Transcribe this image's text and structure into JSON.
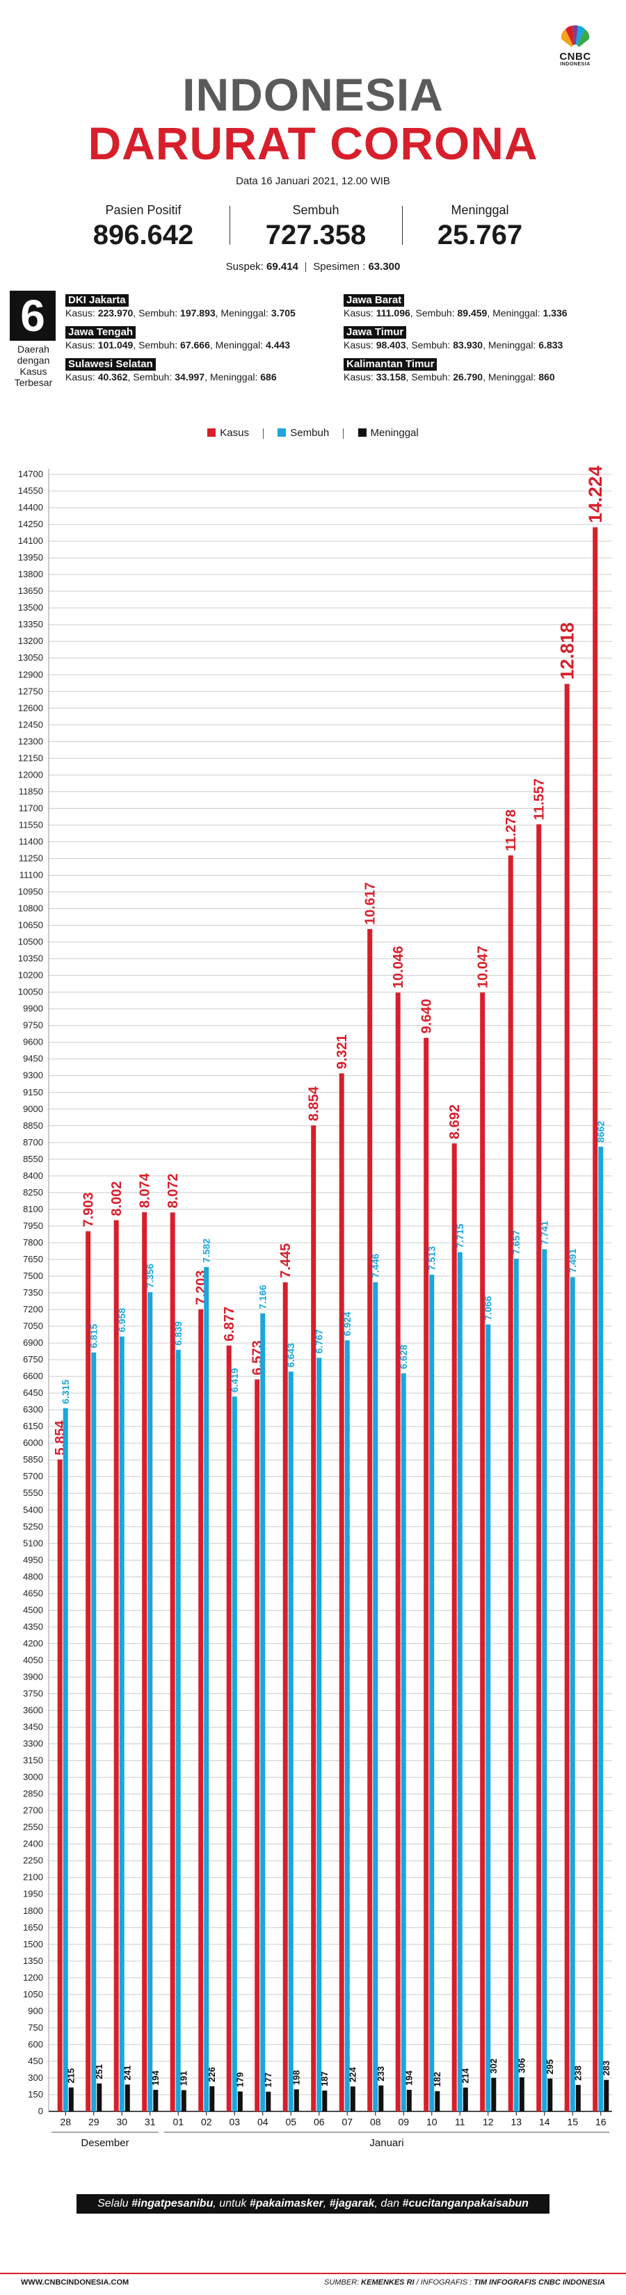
{
  "logo": {
    "brand": "CNBC",
    "sub": "INDONESIA"
  },
  "header": {
    "title_line1": "INDONESIA",
    "title_line2": "DARURAT CORONA",
    "date": "Data 16 Januari 2021, 12.00 WIB"
  },
  "summary": {
    "positif_label": "Pasien Positif",
    "positif_value": "896.642",
    "sembuh_label": "Sembuh",
    "sembuh_value": "727.358",
    "meninggal_label": "Meninggal",
    "meninggal_value": "25.767",
    "suspek_label": "Suspek:",
    "suspek_value": "69.414",
    "spesimen_label": "Spesimen :",
    "spesimen_value": "63.300"
  },
  "top_daerah": {
    "count": "6",
    "caption_lines": [
      "Daerah",
      "dengan",
      "Kasus",
      "Terbesar"
    ],
    "kasus_label": "Kasus:",
    "sembuh_label": "Sembuh:",
    "meninggal_label": "Meninggal:",
    "provinces": [
      {
        "name": "DKI Jakarta",
        "kasus": "223.970",
        "sembuh": "197.893",
        "meninggal": "3.705"
      },
      {
        "name": "Jawa Tengah",
        "kasus": "101.049",
        "sembuh": "67.666",
        "meninggal": "4.443"
      },
      {
        "name": "Sulawesi Selatan",
        "kasus": "40.362",
        "sembuh": "34.997",
        "meninggal": "686"
      },
      {
        "name": "Jawa Barat",
        "kasus": "111.096",
        "sembuh": "89.459",
        "meninggal": "1.336"
      },
      {
        "name": "Jawa Timur",
        "kasus": "98.403",
        "sembuh": "83.930",
        "meninggal": "6.833"
      },
      {
        "name": "Kalimantan Timur",
        "kasus": "33.158",
        "sembuh": "26.790",
        "meninggal": "860"
      }
    ]
  },
  "colors": {
    "kasus": "#d71f2b",
    "sembuh": "#1ba6dd",
    "meninggal": "#111111",
    "title_gray": "#5a5a5a",
    "grid": "#cccccc"
  },
  "chart_data": {
    "type": "bar",
    "title": "",
    "xlabel": "",
    "ylabel": "",
    "ylim": [
      0,
      14750
    ],
    "ytick_step": 150,
    "legend_position": "top-center",
    "categories": [
      "28",
      "29",
      "30",
      "31",
      "01",
      "02",
      "03",
      "04",
      "05",
      "06",
      "07",
      "08",
      "09",
      "10",
      "11",
      "12",
      "13",
      "14",
      "15",
      "16"
    ],
    "month_labels": [
      {
        "label": "Desember",
        "from_index": 0,
        "to_index": 3
      },
      {
        "label": "Januari",
        "from_index": 4,
        "to_index": 19
      }
    ],
    "series": [
      {
        "name": "Kasus",
        "color": "#d71f2b",
        "values": [
          5854,
          7903,
          8002,
          8074,
          8072,
          7203,
          6877,
          6573,
          7445,
          8854,
          9321,
          10617,
          10046,
          9640,
          8692,
          10047,
          11278,
          11557,
          12818,
          14224
        ],
        "labels": [
          "5.854",
          "7.903",
          "8.002",
          "8.074",
          "8.072",
          "7.203",
          "6.877",
          "6.573",
          "7.445",
          "8.854",
          "9.321",
          "10.617",
          "10.046",
          "9.640",
          "8.692",
          "10.047",
          "11.278",
          "11.557",
          "12.818",
          "14.224"
        ]
      },
      {
        "name": "Sembuh",
        "color": "#1ba6dd",
        "values": [
          6315,
          6815,
          6958,
          7356,
          6839,
          7582,
          6419,
          7166,
          6643,
          6767,
          6924,
          7446,
          6628,
          7513,
          7715,
          7066,
          7657,
          7741,
          7491,
          8662
        ],
        "labels": [
          "6.315",
          "6.815",
          "6.958",
          "7.356",
          "6.839",
          "7.582",
          "6.419",
          "7.166",
          "6.643",
          "6.767",
          "6.924",
          "7.446",
          "6.628",
          "7.513",
          "7.715",
          "7.066",
          "7.657",
          "7.741",
          "7.491",
          "8662"
        ]
      },
      {
        "name": "Meninggal",
        "color": "#111111",
        "values": [
          215,
          251,
          241,
          194,
          191,
          226,
          179,
          177,
          198,
          187,
          224,
          233,
          194,
          182,
          214,
          302,
          306,
          295,
          238,
          283
        ],
        "labels": [
          "215",
          "251",
          "241",
          "194",
          "191",
          "226",
          "179",
          "177",
          "198",
          "187",
          "224",
          "233",
          "194",
          "182",
          "214",
          "302",
          "306",
          "295",
          "238",
          "283"
        ]
      }
    ]
  },
  "footer": {
    "slogan_prefix": "Selalu ",
    "slogan_tag1": "#ingatpesanibu",
    "slogan_mid1": ", untuk ",
    "slogan_tag2": "#pakaimasker",
    "slogan_sep": ", ",
    "slogan_tag3": "#jagarak",
    "slogan_mid2": ", dan ",
    "slogan_tag4": "#cucitanganpakaisabun",
    "website": "WWW.CNBCINDONESIA.COM",
    "source_label": "SUMBER:",
    "source_value": "KEMENKES RI",
    "infografis_label": "/ INFOGRAFIS :",
    "infografis_value": "TIM INFOGRAFIS CNBC INDONESIA"
  }
}
